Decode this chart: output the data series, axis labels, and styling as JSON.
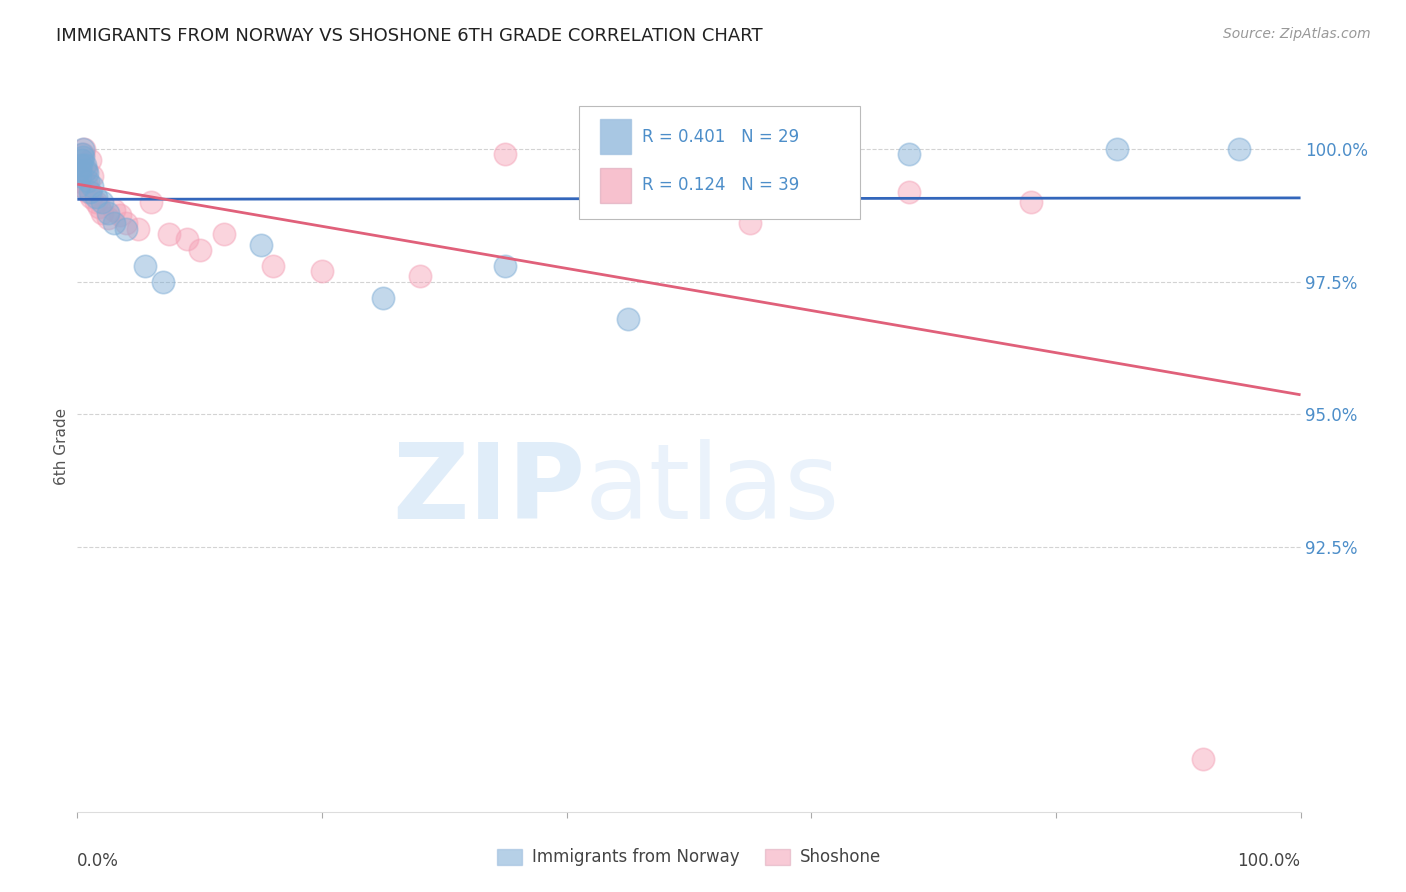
{
  "title": "IMMIGRANTS FROM NORWAY VS SHOSHONE 6TH GRADE CORRELATION CHART",
  "source": "Source: ZipAtlas.com",
  "ylabel": "6th Grade",
  "norway_color": "#7aaad4",
  "shoshone_color": "#f4a0b5",
  "norway_R": 0.401,
  "norway_N": 29,
  "shoshone_R": 0.124,
  "shoshone_N": 39,
  "norway_trend_color": "#3366bb",
  "shoshone_trend_color": "#e0607a",
  "ylim_low": 87.5,
  "ylim_high": 101.3,
  "xlim_low": 0.0,
  "xlim_high": 100.0,
  "yticks": [
    92.5,
    95.0,
    97.5,
    100.0
  ],
  "norway_x": [
    0.1,
    0.2,
    0.25,
    0.3,
    0.35,
    0.4,
    0.45,
    0.5,
    0.6,
    0.7,
    0.8,
    0.9,
    1.0,
    1.2,
    1.5,
    2.0,
    2.5,
    3.0,
    4.0,
    5.5,
    7.0,
    15.0,
    25.0,
    35.0,
    45.0,
    55.0,
    68.0,
    85.0,
    95.0
  ],
  "norway_y": [
    99.3,
    99.5,
    99.6,
    99.7,
    99.8,
    99.9,
    100.0,
    99.85,
    99.7,
    99.6,
    99.55,
    99.4,
    99.2,
    99.3,
    99.1,
    99.0,
    98.8,
    98.6,
    98.5,
    97.8,
    97.5,
    98.2,
    97.2,
    97.8,
    96.8,
    99.1,
    99.9,
    100.0,
    100.0
  ],
  "shoshone_x": [
    0.1,
    0.15,
    0.2,
    0.25,
    0.3,
    0.35,
    0.4,
    0.5,
    0.55,
    0.6,
    0.7,
    0.8,
    0.9,
    1.0,
    1.1,
    1.2,
    1.5,
    1.8,
    2.0,
    2.5,
    3.0,
    3.5,
    4.0,
    5.0,
    6.0,
    7.5,
    9.0,
    10.0,
    12.0,
    16.0,
    20.0,
    28.0,
    35.0,
    42.0,
    55.0,
    62.0,
    68.0,
    78.0,
    92.0
  ],
  "shoshone_y": [
    99.5,
    99.4,
    99.6,
    99.7,
    99.8,
    99.3,
    99.5,
    99.9,
    100.0,
    99.6,
    99.4,
    99.3,
    99.2,
    99.8,
    99.1,
    99.5,
    99.0,
    98.9,
    98.8,
    98.7,
    98.85,
    98.75,
    98.6,
    98.5,
    99.0,
    98.4,
    98.3,
    98.1,
    98.4,
    97.8,
    97.7,
    97.6,
    99.9,
    98.9,
    98.6,
    99.4,
    99.2,
    99.0,
    88.5
  ],
  "background_color": "#ffffff",
  "grid_color": "#cccccc",
  "tick_color": "#4d8ec9"
}
